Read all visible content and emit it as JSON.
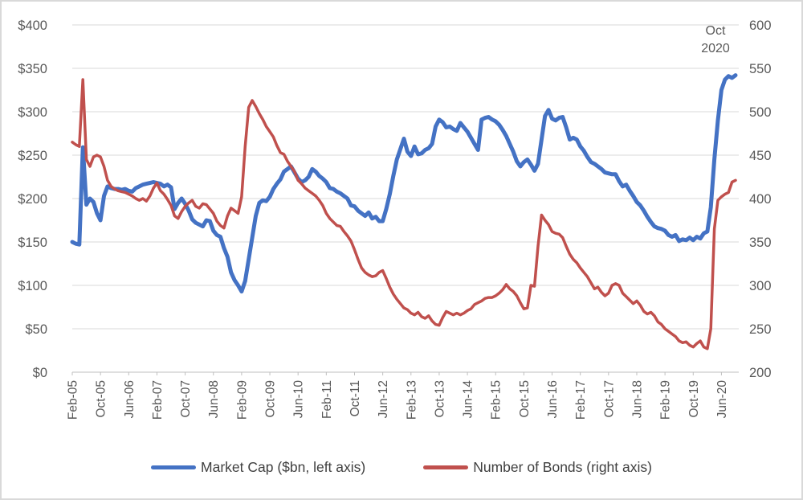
{
  "annotation": "Oct\n2020",
  "colors": {
    "market_cap": "#4472c4",
    "bonds": "#c0504d",
    "gridline": "#d9d9d9",
    "axis_line": "#bfbfbf",
    "tick_text": "#595959",
    "legend_text": "#404040",
    "frame_border": "#d9d9d9"
  },
  "chart_data": {
    "type": "line",
    "title": "",
    "xlabel": "",
    "ylabel_left": "",
    "ylabel_right": "",
    "grid": true,
    "legend_position": "bottom",
    "annotation": "Oct\n2020",
    "left_axis": {
      "min": 0,
      "max": 400,
      "step": 50,
      "tick_labels": [
        "$0",
        "$50",
        "$100",
        "$150",
        "$200",
        "$250",
        "$300",
        "$350",
        "$400"
      ]
    },
    "right_axis": {
      "min": 200,
      "max": 600,
      "step": 50,
      "tick_labels": [
        "200",
        "250",
        "300",
        "350",
        "400",
        "450",
        "500",
        "550",
        "600"
      ]
    },
    "x_tick_every": 8,
    "x_tick_labels": [
      "Feb-05",
      "Oct-05",
      "Jun-06",
      "Feb-07",
      "Oct-07",
      "Jun-08",
      "Feb-09",
      "Oct-09",
      "Jun-10",
      "Feb-11",
      "Oct-11",
      "Jun-12",
      "Feb-13",
      "Oct-13",
      "Jun-14",
      "Feb-15",
      "Oct-15",
      "Jun-16",
      "Feb-17",
      "Oct-17",
      "Jun-18",
      "Feb-19",
      "Oct-19",
      "Jun-20"
    ],
    "x": [
      "Feb-05",
      "Mar-05",
      "Apr-05",
      "May-05",
      "Jun-05",
      "Jul-05",
      "Aug-05",
      "Sep-05",
      "Oct-05",
      "Nov-05",
      "Dec-05",
      "Jan-06",
      "Feb-06",
      "Mar-06",
      "Apr-06",
      "May-06",
      "Jun-06",
      "Jul-06",
      "Aug-06",
      "Sep-06",
      "Oct-06",
      "Nov-06",
      "Dec-06",
      "Jan-07",
      "Feb-07",
      "Mar-07",
      "Apr-07",
      "May-07",
      "Jun-07",
      "Jul-07",
      "Aug-07",
      "Sep-07",
      "Oct-07",
      "Nov-07",
      "Dec-07",
      "Jan-08",
      "Feb-08",
      "Mar-08",
      "Apr-08",
      "May-08",
      "Jun-08",
      "Jul-08",
      "Aug-08",
      "Sep-08",
      "Oct-08",
      "Nov-08",
      "Dec-08",
      "Jan-09",
      "Feb-09",
      "Mar-09",
      "Apr-09",
      "May-09",
      "Jun-09",
      "Jul-09",
      "Aug-09",
      "Sep-09",
      "Oct-09",
      "Nov-09",
      "Dec-09",
      "Jan-10",
      "Feb-10",
      "Mar-10",
      "Apr-10",
      "May-10",
      "Jun-10",
      "Jul-10",
      "Aug-10",
      "Sep-10",
      "Oct-10",
      "Nov-10",
      "Dec-10",
      "Jan-11",
      "Feb-11",
      "Mar-11",
      "Apr-11",
      "May-11",
      "Jun-11",
      "Jul-11",
      "Aug-11",
      "Sep-11",
      "Oct-11",
      "Nov-11",
      "Dec-11",
      "Jan-12",
      "Feb-12",
      "Mar-12",
      "Apr-12",
      "May-12",
      "Jun-12",
      "Jul-12",
      "Aug-12",
      "Sep-12",
      "Oct-12",
      "Nov-12",
      "Dec-12",
      "Jan-13",
      "Feb-13",
      "Mar-13",
      "Apr-13",
      "May-13",
      "Jun-13",
      "Jul-13",
      "Aug-13",
      "Sep-13",
      "Oct-13",
      "Nov-13",
      "Dec-13",
      "Jan-14",
      "Feb-14",
      "Mar-14",
      "Apr-14",
      "May-14",
      "Jun-14",
      "Jul-14",
      "Aug-14",
      "Sep-14",
      "Oct-14",
      "Nov-14",
      "Dec-14",
      "Jan-15",
      "Feb-15",
      "Mar-15",
      "Apr-15",
      "May-15",
      "Jun-15",
      "Jul-15",
      "Aug-15",
      "Sep-15",
      "Oct-15",
      "Nov-15",
      "Dec-15",
      "Jan-16",
      "Feb-16",
      "Mar-16",
      "Apr-16",
      "May-16",
      "Jun-16",
      "Jul-16",
      "Aug-16",
      "Sep-16",
      "Oct-16",
      "Nov-16",
      "Dec-16",
      "Jan-17",
      "Feb-17",
      "Mar-17",
      "Apr-17",
      "May-17",
      "Jun-17",
      "Jul-17",
      "Aug-17",
      "Sep-17",
      "Oct-17",
      "Nov-17",
      "Dec-17",
      "Jan-18",
      "Feb-18",
      "Mar-18",
      "Apr-18",
      "May-18",
      "Jun-18",
      "Jul-18",
      "Aug-18",
      "Sep-18",
      "Oct-18",
      "Nov-18",
      "Dec-18",
      "Jan-19",
      "Feb-19",
      "Mar-19",
      "Apr-19",
      "May-19",
      "Jun-19",
      "Jul-19",
      "Aug-19",
      "Sep-19",
      "Oct-19",
      "Nov-19",
      "Dec-19",
      "Jan-20",
      "Feb-20",
      "Mar-20",
      "Apr-20",
      "May-20",
      "Jun-20",
      "Jul-20",
      "Aug-20",
      "Sep-20",
      "Oct-20"
    ],
    "series": [
      {
        "name": "Market Cap ($bn, left axis)",
        "axis": "left",
        "color": "#4472c4",
        "width": 5,
        "values": [
          150,
          148,
          147,
          259,
          193,
          200,
          196,
          183,
          175,
          203,
          214,
          212,
          211,
          211,
          210,
          211,
          209,
          208,
          212,
          214,
          216,
          217,
          218,
          219,
          218,
          217,
          214,
          216,
          213,
          188,
          195,
          200,
          194,
          186,
          176,
          172,
          170,
          168,
          175,
          174,
          163,
          158,
          156,
          143,
          133,
          115,
          106,
          100,
          93,
          105,
          130,
          155,
          180,
          195,
          198,
          197,
          202,
          211,
          217,
          222,
          231,
          234,
          237,
          230,
          223,
          219,
          221,
          225,
          234,
          231,
          226,
          223,
          219,
          212,
          211,
          208,
          206,
          203,
          200,
          192,
          191,
          186,
          183,
          180,
          184,
          177,
          179,
          174,
          174,
          188,
          205,
          226,
          245,
          257,
          269,
          254,
          249,
          260,
          251,
          252,
          256,
          258,
          263,
          283,
          291,
          288,
          282,
          283,
          280,
          278,
          287,
          282,
          277,
          270,
          263,
          256,
          291,
          293,
          294,
          291,
          289,
          285,
          279,
          272,
          263,
          254,
          243,
          237,
          242,
          245,
          239,
          232,
          240,
          268,
          295,
          302,
          292,
          290,
          293,
          294,
          282,
          268,
          270,
          268,
          260,
          255,
          248,
          242,
          240,
          237,
          234,
          230,
          229,
          228,
          228,
          220,
          214,
          216,
          209,
          203,
          196,
          192,
          186,
          179,
          173,
          168,
          166,
          165,
          163,
          158,
          156,
          158,
          151,
          153,
          152,
          155,
          152,
          156,
          154,
          160,
          162,
          190,
          245,
          290,
          325,
          337,
          341,
          339,
          342
        ]
      },
      {
        "name": "Number of Bonds (right axis)",
        "axis": "right",
        "color": "#c0504d",
        "width": 3.5,
        "values": [
          465,
          462,
          460,
          537,
          445,
          437,
          448,
          450,
          448,
          437,
          421,
          414,
          411,
          409,
          408,
          407,
          405,
          403,
          400,
          398,
          400,
          397,
          403,
          412,
          418,
          409,
          405,
          399,
          392,
          380,
          377,
          385,
          391,
          395,
          398,
          391,
          389,
          394,
          393,
          388,
          383,
          374,
          369,
          366,
          380,
          389,
          386,
          383,
          402,
          460,
          505,
          513,
          506,
          498,
          491,
          483,
          477,
          471,
          461,
          453,
          451,
          443,
          437,
          431,
          421,
          417,
          412,
          409,
          406,
          403,
          398,
          392,
          383,
          377,
          373,
          369,
          368,
          362,
          357,
          351,
          341,
          330,
          320,
          315,
          312,
          310,
          311,
          315,
          317,
          308,
          298,
          290,
          284,
          279,
          274,
          272,
          268,
          266,
          269,
          264,
          262,
          265,
          259,
          255,
          254,
          263,
          270,
          268,
          266,
          268,
          266,
          268,
          271,
          273,
          278,
          280,
          282,
          285,
          286,
          286,
          288,
          291,
          295,
          301,
          296,
          293,
          288,
          280,
          273,
          274,
          300,
          299,
          345,
          381,
          375,
          370,
          362,
          360,
          359,
          355,
          345,
          336,
          330,
          326,
          320,
          315,
          310,
          303,
          296,
          298,
          292,
          288,
          291,
          300,
          302,
          300,
          291,
          287,
          283,
          279,
          282,
          277,
          270,
          267,
          269,
          265,
          258,
          255,
          250,
          247,
          244,
          241,
          236,
          234,
          235,
          231,
          229,
          233,
          236,
          229,
          227,
          250,
          365,
          398,
          402,
          405,
          407,
          419,
          421
        ]
      }
    ]
  },
  "legend": {
    "items": [
      {
        "label": "Market Cap ($bn, left axis)",
        "color": "#4472c4"
      },
      {
        "label": "Number of Bonds (right axis)",
        "color": "#c0504d"
      }
    ]
  }
}
